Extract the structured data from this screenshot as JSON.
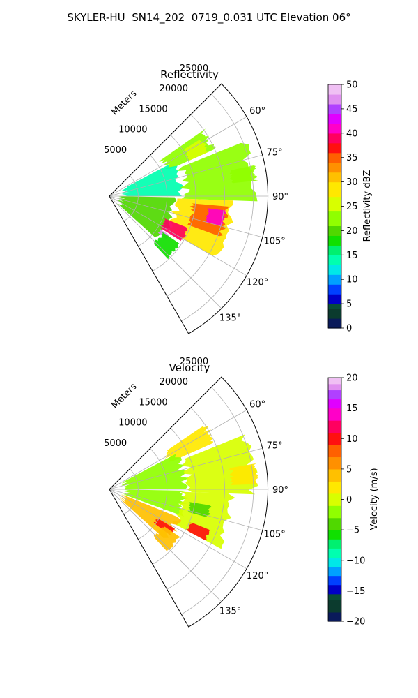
{
  "title": "SKYLER-HU  SN14_202  0719_0.031 UTC Elevation 06°",
  "colors": {
    "frame": "#000000",
    "grid": "#b0b0b0",
    "background": "#ffffff"
  },
  "chart_data": [
    {
      "type": "polar-sector",
      "title": "Reflectivity",
      "radial_label": "Meters",
      "radial_ticks": [
        5000,
        10000,
        15000,
        20000,
        25000
      ],
      "radial_tick_labels": [
        "5000",
        "10000",
        "15000",
        "20000",
        "25000"
      ],
      "rmax": 27500,
      "azimuth_range_deg": [
        45,
        150
      ],
      "azimuth_ticks": [
        60,
        75,
        90,
        105,
        120,
        135
      ],
      "azimuth_tick_labels": [
        "60°",
        "75°",
        "90°",
        "105°",
        "120°",
        "135°"
      ],
      "colorbar": {
        "label": "Reflectivity dBZ",
        "vmin": 0,
        "vmax": 50,
        "ticks": [
          0,
          5,
          10,
          15,
          20,
          25,
          30,
          35,
          40,
          45,
          50
        ],
        "tick_labels": [
          "0",
          "5",
          "10",
          "15",
          "20",
          "25",
          "30",
          "35",
          "40",
          "45",
          "50"
        ],
        "stops": [
          {
            "v": 0,
            "c": "#0a1a5a"
          },
          {
            "v": 2,
            "c": "#0b3b2e"
          },
          {
            "v": 4,
            "c": "#084d3a"
          },
          {
            "v": 5,
            "c": "#0000c8"
          },
          {
            "v": 7,
            "c": "#0040ff"
          },
          {
            "v": 9,
            "c": "#00a0ff"
          },
          {
            "v": 11,
            "c": "#00e8e8"
          },
          {
            "v": 13,
            "c": "#00ffb0"
          },
          {
            "v": 15,
            "c": "#00f070"
          },
          {
            "v": 17,
            "c": "#10e000"
          },
          {
            "v": 19,
            "c": "#50d800"
          },
          {
            "v": 21,
            "c": "#90ff00"
          },
          {
            "v": 24,
            "c": "#d8ff00"
          },
          {
            "v": 27,
            "c": "#ffe800"
          },
          {
            "v": 30,
            "c": "#ffc000"
          },
          {
            "v": 32,
            "c": "#ff9000"
          },
          {
            "v": 34,
            "c": "#ff6000"
          },
          {
            "v": 36,
            "c": "#ff1010"
          },
          {
            "v": 38,
            "c": "#ff0060"
          },
          {
            "v": 40,
            "c": "#ff00c8"
          },
          {
            "v": 42,
            "c": "#e000ff"
          },
          {
            "v": 44,
            "c": "#b040ff"
          },
          {
            "v": 46,
            "c": "#e090f0"
          },
          {
            "v": 48,
            "c": "#f0c0f4"
          },
          {
            "v": 50,
            "c": "#fbe8fb"
          }
        ]
      },
      "echo_regions": [
        {
          "value": 21,
          "az": [
            55,
            66
          ],
          "r": [
            10500,
            20500
          ]
        },
        {
          "value": 26,
          "az": [
            58,
            66
          ],
          "r": [
            15000,
            19000
          ]
        },
        {
          "value": 13,
          "az": [
            62,
            90
          ],
          "r": [
            2000,
            13000
          ]
        },
        {
          "value": 21,
          "az": [
            68,
            92
          ],
          "r": [
            12000,
            26000
          ]
        },
        {
          "value": 23,
          "az": [
            78,
            84
          ],
          "r": [
            21000,
            26000
          ]
        },
        {
          "value": 19,
          "az": [
            91,
            132
          ],
          "r": [
            1500,
            12000
          ]
        },
        {
          "value": 28,
          "az": [
            92,
            120
          ],
          "r": [
            11000,
            22000
          ]
        },
        {
          "value": 35,
          "az": [
            95,
            110
          ],
          "r": [
            14000,
            21000
          ]
        },
        {
          "value": 41,
          "az": [
            97,
            105
          ],
          "r": [
            17000,
            20500
          ]
        },
        {
          "value": 39,
          "az": [
            112,
            122
          ],
          "r": [
            10000,
            15000
          ]
        },
        {
          "value": 47,
          "az": [
            123,
            127
          ],
          "r": [
            10500,
            12500
          ]
        },
        {
          "value": 18,
          "az": [
            124,
            137
          ],
          "r": [
            11000,
            15000
          ]
        }
      ]
    },
    {
      "type": "polar-sector",
      "title": "Velocity",
      "radial_label": "Meters",
      "radial_ticks": [
        5000,
        10000,
        15000,
        20000,
        25000
      ],
      "radial_tick_labels": [
        "5000",
        "10000",
        "15000",
        "20000",
        "25000"
      ],
      "rmax": 27500,
      "azimuth_range_deg": [
        45,
        150
      ],
      "azimuth_ticks": [
        60,
        75,
        90,
        105,
        120,
        135
      ],
      "azimuth_tick_labels": [
        "60°",
        "75°",
        "90°",
        "105°",
        "120°",
        "135°"
      ],
      "colorbar": {
        "label": "Velocity (m/s)",
        "vmin": -20,
        "vmax": 20,
        "ticks": [
          -20,
          -15,
          -10,
          -5,
          0,
          5,
          10,
          15,
          20
        ],
        "tick_labels": [
          "−20",
          "−15",
          "−10",
          "−5",
          "0",
          "5",
          "10",
          "15",
          "20"
        ],
        "stops": [
          {
            "v": -20,
            "c": "#0a1a5a"
          },
          {
            "v": -18.5,
            "c": "#0b3b2e"
          },
          {
            "v": -16.5,
            "c": "#084d3a"
          },
          {
            "v": -15.5,
            "c": "#0000c8"
          },
          {
            "v": -14,
            "c": "#0040ff"
          },
          {
            "v": -12.5,
            "c": "#00a0ff"
          },
          {
            "v": -11,
            "c": "#00e8e8"
          },
          {
            "v": -9.5,
            "c": "#00ffb0"
          },
          {
            "v": -8,
            "c": "#00f070"
          },
          {
            "v": -6.5,
            "c": "#10e000"
          },
          {
            "v": -5,
            "c": "#50d800"
          },
          {
            "v": -3,
            "c": "#90ff00"
          },
          {
            "v": -1,
            "c": "#d8ff00"
          },
          {
            "v": 1,
            "c": "#ffe800"
          },
          {
            "v": 3,
            "c": "#ffc000"
          },
          {
            "v": 5,
            "c": "#ff9000"
          },
          {
            "v": 7,
            "c": "#ff6000"
          },
          {
            "v": 9,
            "c": "#ff1010"
          },
          {
            "v": 11,
            "c": "#ff0060"
          },
          {
            "v": 13,
            "c": "#ff00c8"
          },
          {
            "v": 15,
            "c": "#e000ff"
          },
          {
            "v": 16.5,
            "c": "#b040ff"
          },
          {
            "v": 18,
            "c": "#e090f0"
          },
          {
            "v": 19,
            "c": "#f0c0f4"
          },
          {
            "v": 20,
            "c": "#fbe8fb"
          }
        ]
      },
      "echo_regions": [
        {
          "value": 2,
          "az": [
            56,
            66
          ],
          "r": [
            11000,
            20500
          ]
        },
        {
          "value": -2,
          "az": [
            62,
            90
          ],
          "r": [
            2000,
            14000
          ]
        },
        {
          "value": -1,
          "az": [
            68,
            92
          ],
          "r": [
            13000,
            26000
          ]
        },
        {
          "value": 2,
          "az": [
            80,
            88
          ],
          "r": [
            21000,
            26000
          ]
        },
        {
          "value": -3,
          "az": [
            91,
            110
          ],
          "r": [
            2000,
            14000
          ]
        },
        {
          "value": 0,
          "az": [
            92,
            118
          ],
          "r": [
            12000,
            22000
          ]
        },
        {
          "value": -5,
          "az": [
            99,
            106
          ],
          "r": [
            14000,
            18000
          ]
        },
        {
          "value": 3,
          "az": [
            112,
            132
          ],
          "r": [
            2000,
            14000
          ]
        },
        {
          "value": 9,
          "az": [
            112,
            118
          ],
          "r": [
            15000,
            19000
          ]
        },
        {
          "value": 10,
          "az": [
            121,
            127
          ],
          "r": [
            9500,
            13500
          ]
        },
        {
          "value": 4,
          "az": [
            124,
            137
          ],
          "r": [
            11000,
            15000
          ]
        }
      ]
    }
  ]
}
